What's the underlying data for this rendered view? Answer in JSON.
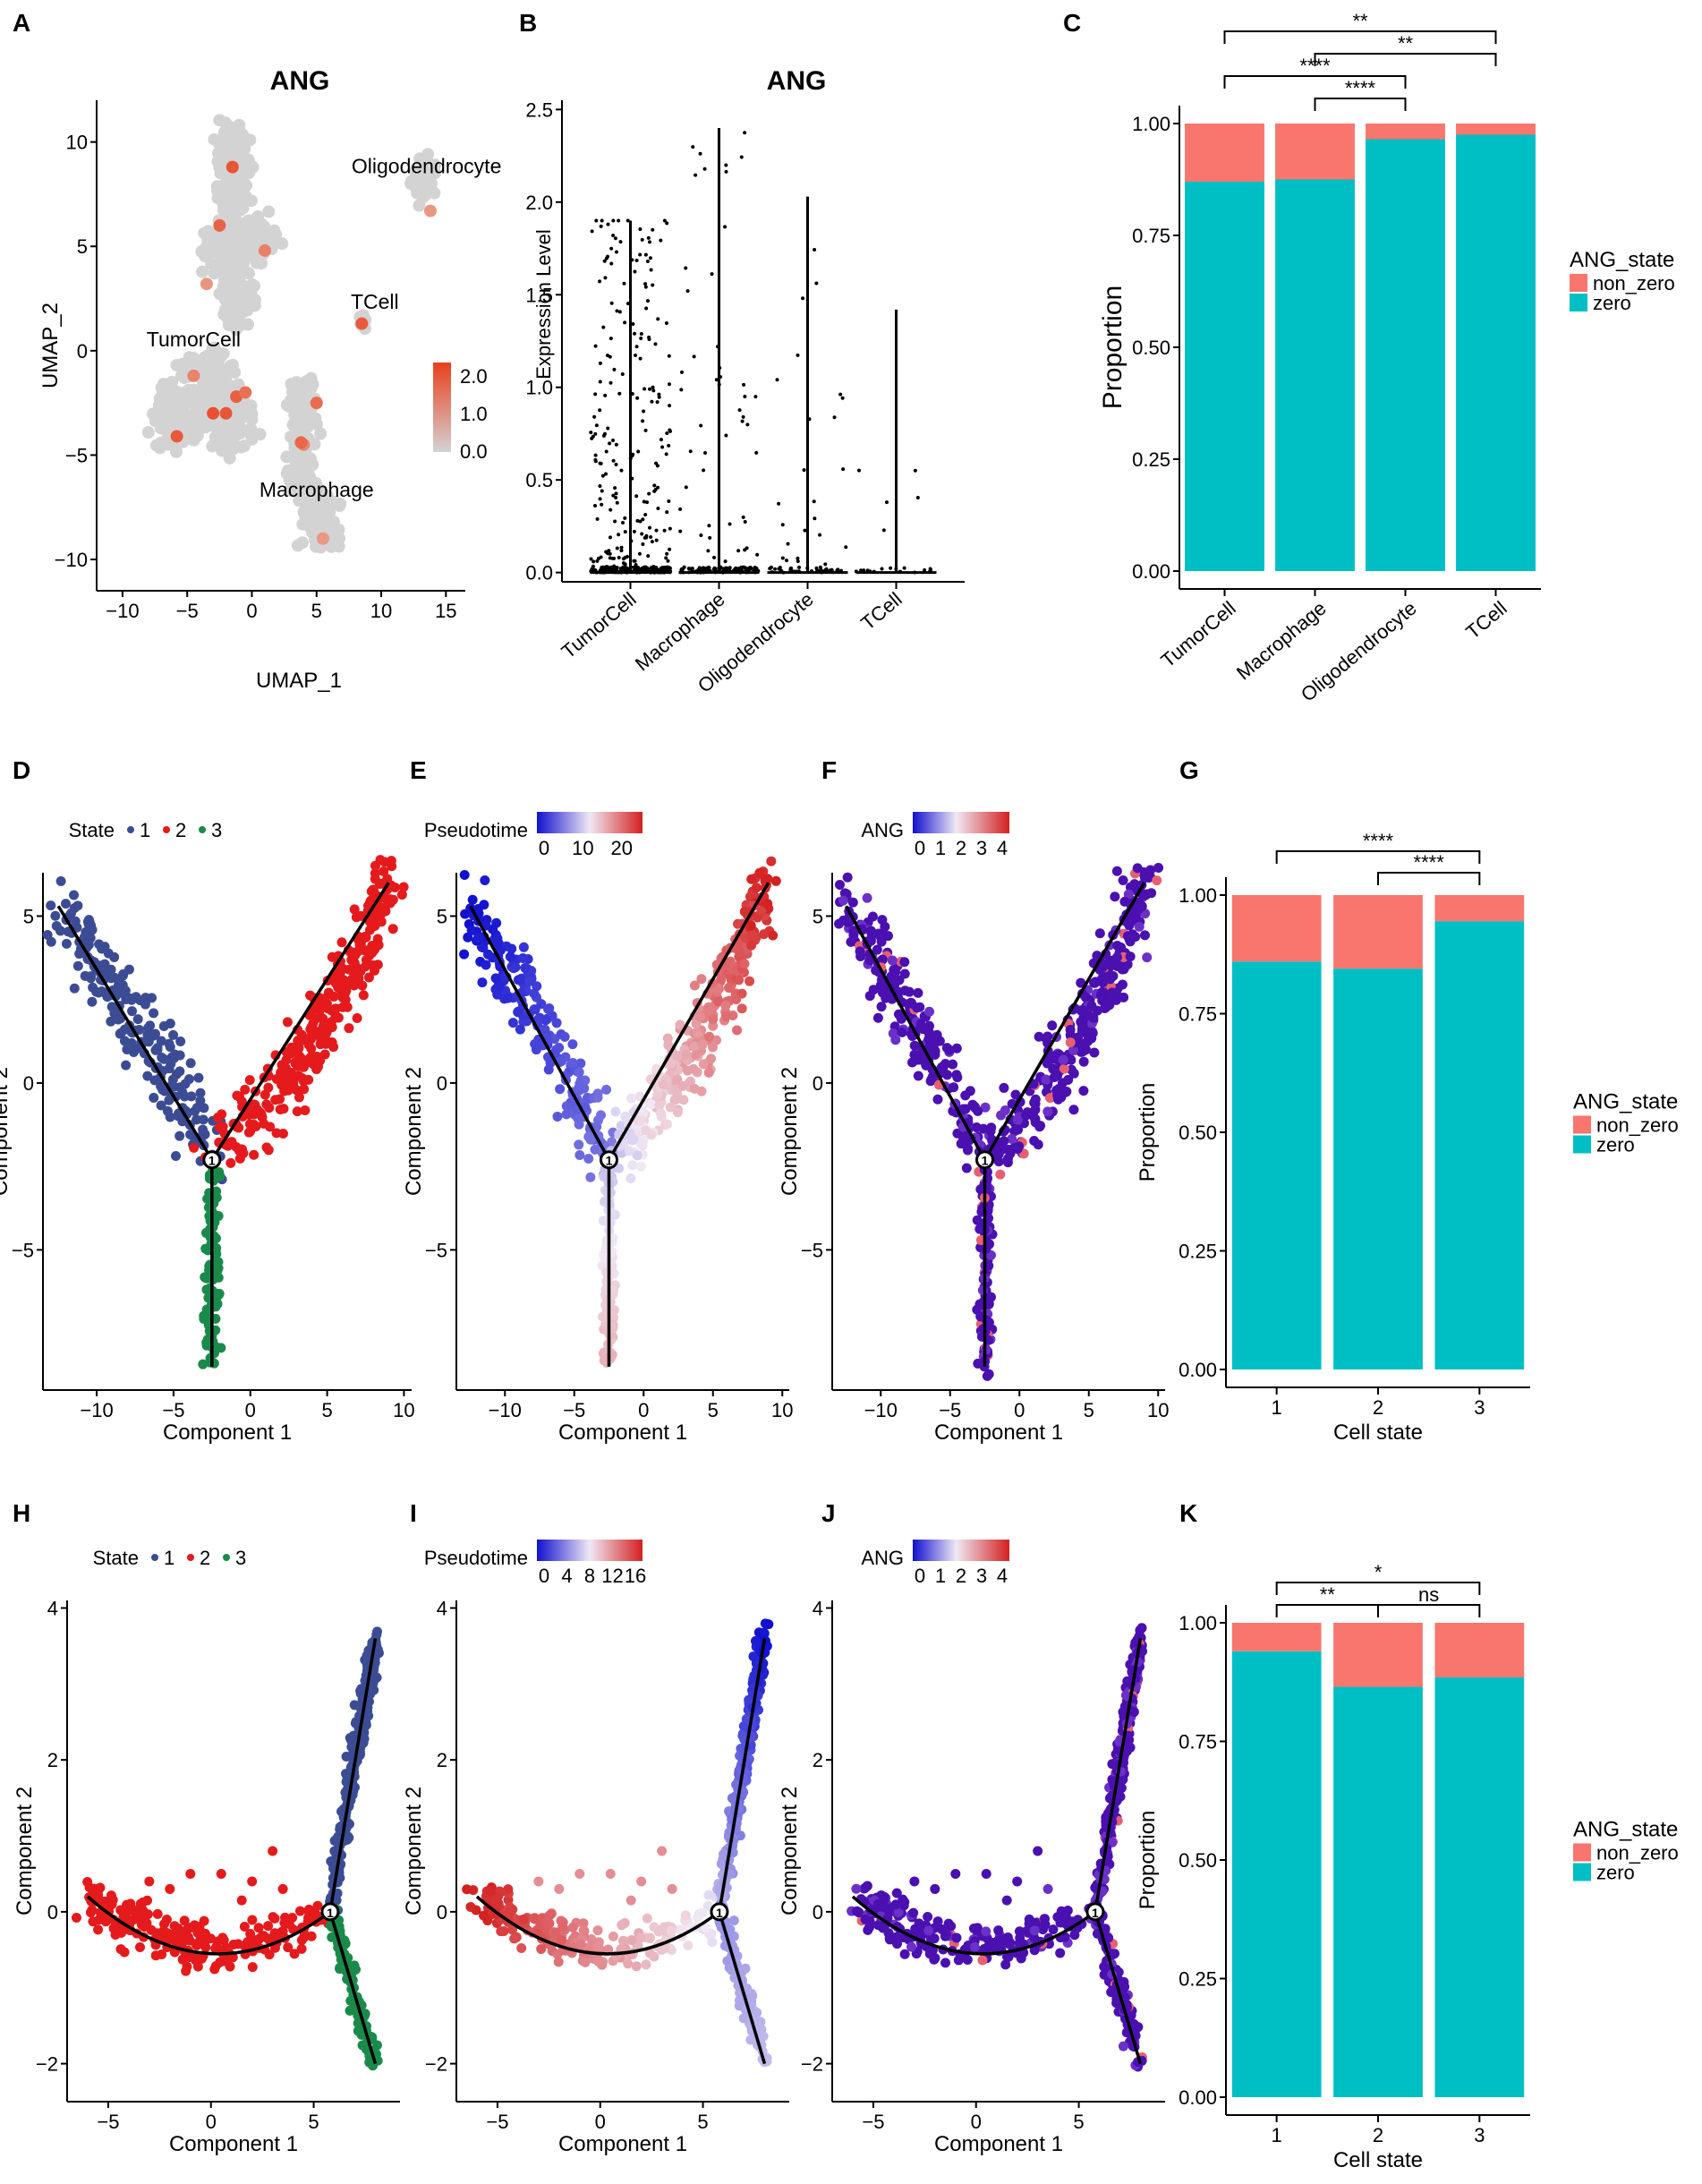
{
  "colors": {
    "teal": "#00bfc4",
    "salmon": "#f8766d",
    "grey": "#d3d3d3",
    "state1": "#3c4c94",
    "state2": "#e41a1c",
    "state3": "#1a8a4a",
    "dark_purple": "#4a10b0"
  },
  "chart_data": [
    {
      "panel": "A",
      "type": "scatter",
      "title": "ANG",
      "xlabel": "UMAP_1",
      "ylabel": "UMAP_2",
      "xlim": [
        -12,
        16.5
      ],
      "ylim": [
        -11.5,
        12
      ],
      "xticks": [
        "−10",
        "−5",
        "0",
        "5",
        "10",
        "15"
      ],
      "xtick_values": [
        -10,
        -5,
        0,
        5,
        10,
        15
      ],
      "yticks": [
        "10",
        "5",
        "0",
        "−5",
        "−10"
      ],
      "ytick_values": [
        10,
        5,
        0,
        -5,
        -10
      ],
      "cluster_labels": [
        {
          "text": "Oligodendrocyte",
          "x": 13.5,
          "y": 8.5
        },
        {
          "text": "TCell",
          "x": 9.5,
          "y": 2
        },
        {
          "text": "TumorCell",
          "x": -4.5,
          "y": 0.2
        },
        {
          "text": "Macrophage",
          "x": 5,
          "y": -7
        },
        {
          "text": "",
          "x": 0,
          "y": 0
        }
      ],
      "colorbar": {
        "ticks": [
          "2.0",
          "1.0",
          "0.0"
        ],
        "range": [
          0,
          2.2
        ]
      },
      "clusters": [
        {
          "name": "TumorCell",
          "x": [
            -8,
            1.5
          ],
          "y": [
            -5,
            11
          ]
        },
        {
          "name": "Macrophage",
          "x": [
            2,
            7
          ],
          "y": [
            -10.5,
            -1
          ]
        },
        {
          "name": "Oligodendrocyte",
          "x": [
            11.5,
            15
          ],
          "y": [
            6.5,
            10
          ]
        },
        {
          "name": "TCell",
          "x": [
            8,
            9
          ],
          "y": [
            1,
            2
          ]
        }
      ]
    },
    {
      "panel": "B",
      "type": "violin",
      "title": "ANG",
      "ylabel": "Expression Level",
      "categories": [
        "TumorCell",
        "Macrophage",
        "Oligodendrocyte",
        "TCell"
      ],
      "max_values": [
        1.9,
        2.4,
        2.03,
        1.42
      ],
      "ylim": [
        -0.05,
        2.55
      ],
      "yticks": [
        "0.0",
        "0.5",
        "1.0",
        "1.5",
        "2.0",
        "2.5"
      ],
      "ytick_values": [
        0,
        0.5,
        1,
        1.5,
        2,
        2.5
      ]
    },
    {
      "panel": "C",
      "type": "bar",
      "stacked": true,
      "categories": [
        "TumorCell",
        "Macrophage",
        "Oligodendrocyte",
        "TCell"
      ],
      "series": [
        {
          "name": "zero",
          "values": [
            0.87,
            0.875,
            0.965,
            0.975
          ]
        },
        {
          "name": "non_zero",
          "values": [
            0.13,
            0.125,
            0.035,
            0.025
          ]
        }
      ],
      "ylabel": "Proportion",
      "xlabel": "",
      "ylim": [
        0,
        1
      ],
      "yticks": [
        "0.00",
        "0.25",
        "0.50",
        "0.75",
        "1.00"
      ],
      "ytick_values": [
        0,
        0.25,
        0.5,
        0.75,
        1
      ],
      "legend_title": "ANG_state",
      "legend": [
        "non_zero",
        "zero"
      ],
      "significance": [
        {
          "from": 0,
          "to": 3,
          "label": "**",
          "level": 1
        },
        {
          "from": 1,
          "to": 3,
          "label": "**",
          "level": 2
        },
        {
          "from": 0,
          "to": 2,
          "label": "****",
          "level": 3
        },
        {
          "from": 1,
          "to": 2,
          "label": "****",
          "level": 4
        }
      ]
    },
    {
      "panel": "D",
      "type": "scatter",
      "color_by": "state",
      "legend": {
        "title": "State",
        "items": [
          "1",
          "2",
          "3"
        ]
      },
      "xlabel": "Component 1",
      "ylabel": "Component 2",
      "xlim": [
        -13.5,
        10.5
      ],
      "ylim": [
        -9.2,
        6.3
      ],
      "xticks": [
        "−10",
        "−5",
        "0",
        "5",
        "10"
      ],
      "xtick_values": [
        -10,
        -5,
        0,
        5,
        10
      ],
      "yticks": [
        "5",
        "0",
        "−5"
      ],
      "ytick_values": [
        5,
        0,
        -5
      ],
      "trajectory": {
        "branch_point": [
          -2.5,
          -2.3
        ],
        "label": "1",
        "ends": [
          [
            -12.5,
            5.3
          ],
          [
            9,
            6
          ],
          [
            -2.5,
            -8.5
          ]
        ]
      }
    },
    {
      "panel": "E",
      "type": "scatter",
      "color_by": "pseudotime",
      "legend": {
        "title": "Pseudotime",
        "ticks": [
          "0",
          "10",
          "20"
        ]
      },
      "xlabel": "Component 1",
      "ylabel": "Component 2",
      "xlim": [
        -13.5,
        10.5
      ],
      "ylim": [
        -9.2,
        6.3
      ],
      "xticks": [
        "−10",
        "−5",
        "0",
        "5",
        "10"
      ],
      "xtick_values": [
        -10,
        -5,
        0,
        5,
        10
      ],
      "yticks": [
        "5",
        "0",
        "−5"
      ],
      "ytick_values": [
        5,
        0,
        -5
      ],
      "trajectory": {
        "branch_point": [
          -2.5,
          -2.3
        ],
        "label": "1",
        "ends": [
          [
            -12.5,
            5.3
          ],
          [
            9,
            6
          ],
          [
            -2.5,
            -8.5
          ]
        ]
      }
    },
    {
      "panel": "F",
      "type": "scatter",
      "color_by": "ANG",
      "legend": {
        "title": "ANG",
        "ticks": [
          "0",
          "1",
          "2",
          "3",
          "4"
        ]
      },
      "xlabel": "Component 1",
      "ylabel": "Component 2",
      "xlim": [
        -13.5,
        10.5
      ],
      "ylim": [
        -9.2,
        6.3
      ],
      "xticks": [
        "−10",
        "−5",
        "0",
        "5",
        "10"
      ],
      "xtick_values": [
        -10,
        -5,
        0,
        5,
        10
      ],
      "yticks": [
        "5",
        "0",
        "−5"
      ],
      "ytick_values": [
        5,
        0,
        -5
      ],
      "trajectory": {
        "branch_point": [
          -2.5,
          -2.3
        ],
        "label": "1",
        "ends": [
          [
            -12.5,
            5.3
          ],
          [
            9,
            6
          ],
          [
            -2.5,
            -8.5
          ]
        ]
      }
    },
    {
      "panel": "G",
      "type": "bar",
      "stacked": true,
      "categories": [
        "1",
        "2",
        "3"
      ],
      "series": [
        {
          "name": "zero",
          "values": [
            0.86,
            0.845,
            0.945
          ]
        },
        {
          "name": "non_zero",
          "values": [
            0.14,
            0.155,
            0.055
          ]
        }
      ],
      "ylabel": "Proportion",
      "xlabel": "Cell state",
      "ylim": [
        0,
        1
      ],
      "yticks": [
        "0.00",
        "0.25",
        "0.50",
        "0.75",
        "1.00"
      ],
      "ytick_values": [
        0,
        0.25,
        0.5,
        0.75,
        1
      ],
      "legend_title": "ANG_state",
      "legend": [
        "non_zero",
        "zero"
      ],
      "significance": [
        {
          "from": 0,
          "to": 2,
          "label": "****",
          "level": 1
        },
        {
          "from": 1,
          "to": 2,
          "label": "****",
          "level": 2
        }
      ]
    },
    {
      "panel": "H",
      "type": "scatter",
      "color_by": "state",
      "legend": {
        "title": "State",
        "items": [
          "1",
          "2",
          "3"
        ]
      },
      "xlabel": "Component 1",
      "ylabel": "Component 2",
      "xlim": [
        -7,
        9.2
      ],
      "ylim": [
        -2.5,
        4.1
      ],
      "xticks": [
        "−5",
        "0",
        "5"
      ],
      "xtick_values": [
        -5,
        0,
        5
      ],
      "yticks": [
        "4",
        "2",
        "0",
        "−2"
      ],
      "ytick_values": [
        4,
        2,
        0,
        -2
      ],
      "trajectory": {
        "branch_point": [
          5.8,
          0
        ],
        "label": "1",
        "ends": [
          [
            -6,
            0.2
          ],
          [
            8,
            3.6
          ],
          [
            8,
            -2
          ]
        ]
      }
    },
    {
      "panel": "I",
      "type": "scatter",
      "color_by": "pseudotime",
      "legend": {
        "title": "Pseudotime",
        "ticks": [
          "0",
          "4",
          "8",
          "12",
          "16"
        ]
      },
      "xlabel": "Component 1",
      "ylabel": "Component 2",
      "xlim": [
        -7,
        9.2
      ],
      "ylim": [
        -2.5,
        4.1
      ],
      "xticks": [
        "−5",
        "0",
        "5"
      ],
      "xtick_values": [
        -5,
        0,
        5
      ],
      "yticks": [
        "4",
        "2",
        "0",
        "−2"
      ],
      "ytick_values": [
        4,
        2,
        0,
        -2
      ],
      "trajectory": {
        "branch_point": [
          5.8,
          0
        ],
        "label": "1",
        "ends": [
          [
            -6,
            0.2
          ],
          [
            8,
            3.6
          ],
          [
            8,
            -2
          ]
        ]
      }
    },
    {
      "panel": "J",
      "type": "scatter",
      "color_by": "ANG",
      "legend": {
        "title": "ANG",
        "ticks": [
          "0",
          "1",
          "2",
          "3",
          "4"
        ]
      },
      "xlabel": "Component 1",
      "ylabel": "Component 2",
      "xlim": [
        -7,
        9.2
      ],
      "ylim": [
        -2.5,
        4.1
      ],
      "xticks": [
        "−5",
        "0",
        "5"
      ],
      "xtick_values": [
        -5,
        0,
        5
      ],
      "yticks": [
        "4",
        "2",
        "0",
        "−2"
      ],
      "ytick_values": [
        4,
        2,
        0,
        -2
      ],
      "trajectory": {
        "branch_point": [
          5.8,
          0
        ],
        "label": "1",
        "ends": [
          [
            -6,
            0.2
          ],
          [
            8,
            3.6
          ],
          [
            8,
            -2
          ]
        ]
      }
    },
    {
      "panel": "K",
      "type": "bar",
      "stacked": true,
      "categories": [
        "1",
        "2",
        "3"
      ],
      "series": [
        {
          "name": "zero",
          "values": [
            0.94,
            0.865,
            0.885
          ]
        },
        {
          "name": "non_zero",
          "values": [
            0.06,
            0.135,
            0.115
          ]
        }
      ],
      "ylabel": "Proportion",
      "xlabel": "Cell state",
      "ylim": [
        0,
        1
      ],
      "yticks": [
        "0.00",
        "0.25",
        "0.50",
        "0.75",
        "1.00"
      ],
      "ytick_values": [
        0,
        0.25,
        0.5,
        0.75,
        1
      ],
      "legend_title": "ANG_state",
      "legend": [
        "non_zero",
        "zero"
      ],
      "significance": [
        {
          "from": 0,
          "to": 2,
          "label": "*",
          "level": 1
        },
        {
          "from": 1,
          "to": 2,
          "label": "ns",
          "level": 2
        },
        {
          "from": 0,
          "to": 1,
          "label": "**",
          "level": 2
        }
      ]
    }
  ]
}
